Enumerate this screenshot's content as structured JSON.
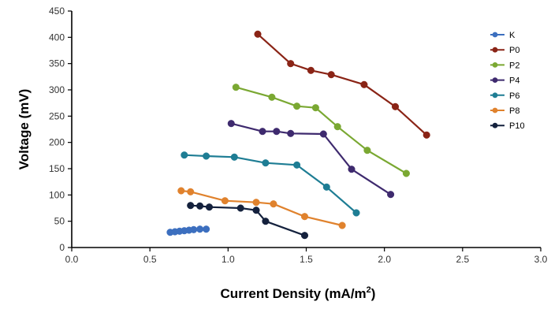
{
  "chart_data": {
    "type": "line",
    "xlabel": "Current Density (mA/m",
    "xlabel_superscript": "2",
    "xlabel_suffix": ")",
    "ylabel": "Voltage (mV)",
    "xlim": [
      0.0,
      3.0
    ],
    "ylim": [
      0,
      450
    ],
    "x_ticks": [
      "0.0",
      "0.5",
      "1.0",
      "1.5",
      "2.0",
      "2.5",
      "3.0"
    ],
    "y_ticks": [
      "0",
      "50",
      "100",
      "150",
      "200",
      "250",
      "300",
      "350",
      "400",
      "450"
    ],
    "grid": false,
    "legend_position": "right",
    "series": [
      {
        "name": "K",
        "color": "#3c6fbf",
        "x": [
          0.63,
          0.66,
          0.69,
          0.72,
          0.75,
          0.78,
          0.82,
          0.86
        ],
        "y": [
          29,
          30,
          31,
          32,
          33,
          34,
          35,
          35
        ]
      },
      {
        "name": "P0",
        "color": "#8a2416",
        "x": [
          1.19,
          1.4,
          1.53,
          1.66,
          1.87,
          2.07,
          2.27
        ],
        "y": [
          406,
          350,
          337,
          329,
          310,
          268,
          214
        ]
      },
      {
        "name": "P2",
        "color": "#7aa832",
        "x": [
          1.05,
          1.28,
          1.44,
          1.56,
          1.7,
          1.89,
          2.14
        ],
        "y": [
          305,
          286,
          269,
          266,
          230,
          185,
          141
        ]
      },
      {
        "name": "P4",
        "color": "#3e2a6e",
        "x": [
          1.02,
          1.22,
          1.31,
          1.4,
          1.61,
          1.79,
          2.04
        ],
        "y": [
          236,
          221,
          221,
          217,
          216,
          149,
          101
        ]
      },
      {
        "name": "P6",
        "color": "#1e7d94",
        "x": [
          0.72,
          0.86,
          1.04,
          1.24,
          1.44,
          1.63,
          1.82
        ],
        "y": [
          176,
          174,
          172,
          161,
          157,
          115,
          66
        ]
      },
      {
        "name": "P8",
        "color": "#e0822d",
        "x": [
          0.7,
          0.76,
          0.98,
          1.18,
          1.29,
          1.49,
          1.73
        ],
        "y": [
          108,
          106,
          89,
          86,
          83,
          59,
          42
        ]
      },
      {
        "name": "P10",
        "color": "#14213d",
        "x": [
          0.76,
          0.82,
          0.88,
          1.08,
          1.18,
          1.24,
          1.49
        ],
        "y": [
          80,
          79,
          77,
          75,
          71,
          50,
          23
        ]
      }
    ]
  }
}
